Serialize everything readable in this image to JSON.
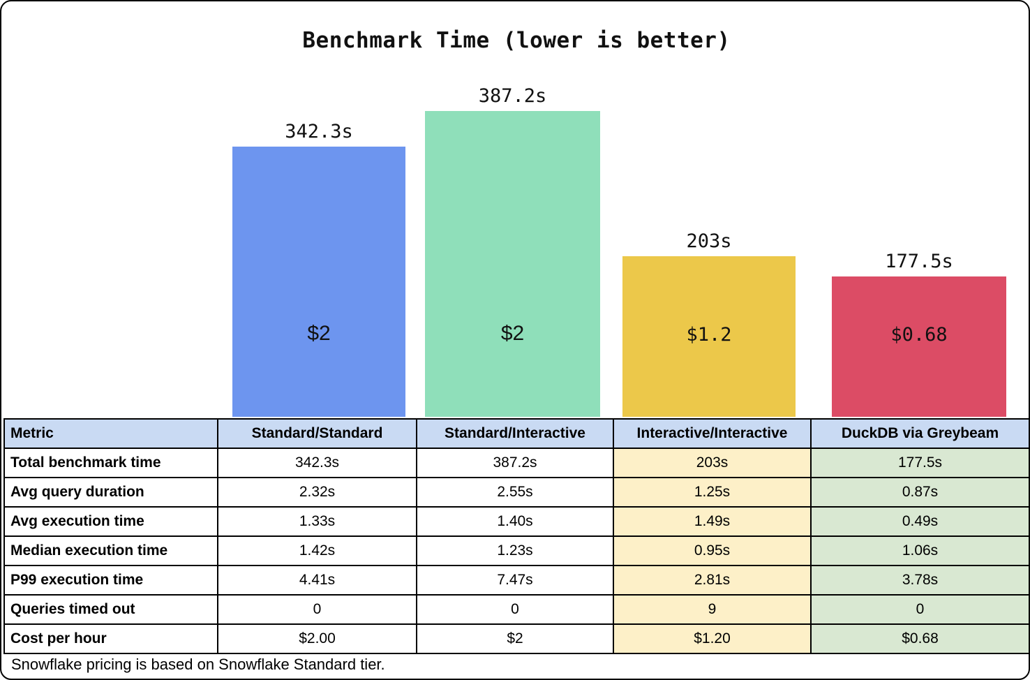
{
  "chart_data": {
    "type": "bar",
    "title": "Benchmark Time (lower is better)",
    "categories": [
      "Standard/Standard",
      "Standard/Interactive",
      "Interactive/Interactive",
      "DuckDB via Greybeam"
    ],
    "values": [
      342.3,
      387.2,
      203,
      177.5
    ],
    "value_labels": [
      "342.3s",
      "387.2s",
      "203s",
      "177.5s"
    ],
    "cost_labels": [
      "$2",
      "$2",
      "$1.2",
      "$0.68"
    ],
    "bar_colors": [
      "#6d95ef",
      "#8fdfba",
      "#ecc84a",
      "#dc4c65"
    ],
    "ylabel": "",
    "xlabel": "",
    "ylim": [
      0,
      400
    ],
    "axes_visible": false,
    "legend_position": "none",
    "grid": false
  },
  "table": {
    "header_bg": "#c9daf3",
    "yellow_col_bg": "#fdf0c8",
    "green_col_bg": "#d9e8d2",
    "headers": [
      "Metric",
      "Standard/Standard",
      "Standard/Interactive",
      "Interactive/Interactive",
      "DuckDB via Greybeam"
    ],
    "rows": [
      {
        "metric": "Total benchmark time",
        "values": [
          "342.3s",
          "387.2s",
          "203s",
          "177.5s"
        ]
      },
      {
        "metric": "Avg query duration",
        "values": [
          "2.32s",
          "2.55s",
          "1.25s",
          "0.87s"
        ]
      },
      {
        "metric": "Avg execution time",
        "values": [
          "1.33s",
          "1.40s",
          "1.49s",
          "0.49s"
        ]
      },
      {
        "metric": "Median execution time",
        "values": [
          "1.42s",
          "1.23s",
          "0.95s",
          "1.06s"
        ]
      },
      {
        "metric": "P99 execution time",
        "values": [
          "4.41s",
          "7.47s",
          "2.81s",
          "3.78s"
        ]
      },
      {
        "metric": "Queries timed out",
        "values": [
          "0",
          "0",
          "9",
          "0"
        ]
      },
      {
        "metric": "Cost per hour",
        "values": [
          "$2.00",
          "$2",
          "$1.20",
          "$0.68"
        ]
      }
    ]
  },
  "footnote": "Snowflake pricing is based on Snowflake Standard tier."
}
